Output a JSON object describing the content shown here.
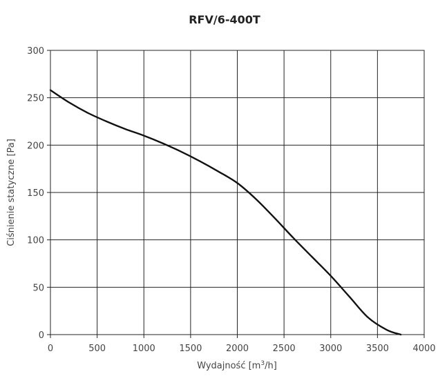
{
  "chart_data": {
    "type": "line",
    "title": "RFV/6-400T",
    "xlabel": {
      "pre": "Wydajność [m",
      "sup": "3",
      "post": "/h]"
    },
    "ylabel": "Ciśnienie statyczne [Pa]",
    "xlim": [
      0,
      4000
    ],
    "ylim": [
      0,
      300
    ],
    "xticks": [
      0,
      500,
      1000,
      1500,
      2000,
      2500,
      3000,
      3500,
      4000
    ],
    "yticks": [
      0,
      50,
      100,
      150,
      200,
      250,
      300
    ],
    "xtick_labels": [
      "0",
      "500",
      "1000",
      "1500",
      "2000",
      "2500",
      "3000",
      "3500",
      "4000"
    ],
    "ytick_labels": [
      "0",
      "50",
      "100",
      "150",
      "200",
      "250",
      "300"
    ],
    "grid": true,
    "series": [
      {
        "color": "#111111",
        "x": [
          0,
          200,
          400,
          600,
          800,
          1000,
          1200,
          1400,
          1600,
          1800,
          2000,
          2200,
          2400,
          2600,
          2800,
          3000,
          3200,
          3400,
          3600,
          3750
        ],
        "y": [
          258,
          245,
          234,
          225,
          217,
          210,
          202,
          193,
          183,
          172,
          160,
          143,
          123,
          102,
          82,
          62,
          40,
          18,
          5,
          0
        ]
      }
    ]
  }
}
